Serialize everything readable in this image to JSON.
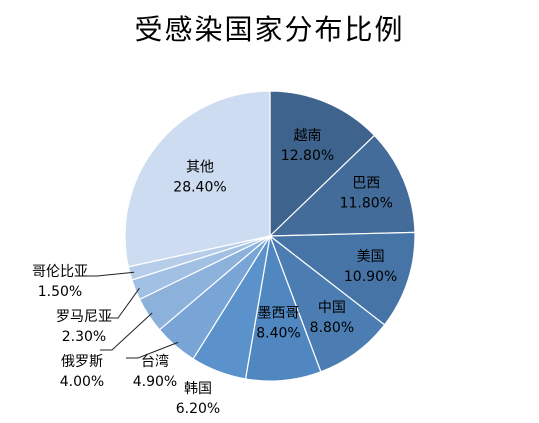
{
  "chart_data": {
    "type": "pie",
    "title": "受感染国家分布比例",
    "slices": [
      {
        "name": "越南",
        "value": 12.8,
        "label": "12.80%",
        "color": "#3e648e"
      },
      {
        "name": "巴西",
        "value": 11.8,
        "label": "11.80%",
        "color": "#436c9a"
      },
      {
        "name": "美国",
        "value": 10.9,
        "label": "10.90%",
        "color": "#4774a6"
      },
      {
        "name": "中国",
        "value": 8.8,
        "label": "8.80%",
        "color": "#4b7db2"
      },
      {
        "name": "墨西哥",
        "value": 8.4,
        "label": "8.40%",
        "color": "#5087c0"
      },
      {
        "name": "韩国",
        "value": 6.2,
        "label": "6.20%",
        "color": "#5b92cc"
      },
      {
        "name": "台湾",
        "value": 4.9,
        "label": "4.90%",
        "color": "#78a5d6"
      },
      {
        "name": "俄罗斯",
        "value": 4.0,
        "label": "4.00%",
        "color": "#8cb2dc"
      },
      {
        "name": "罗马尼亚",
        "value": 2.3,
        "label": "2.30%",
        "color": "#a2c0e3"
      },
      {
        "name": "哥伦比亚",
        "value": 1.5,
        "label": "1.50%",
        "color": "#b6cdea"
      },
      {
        "name": "其他",
        "value": 28.4,
        "label": "28.40%",
        "color": "#cddcf0"
      }
    ]
  }
}
